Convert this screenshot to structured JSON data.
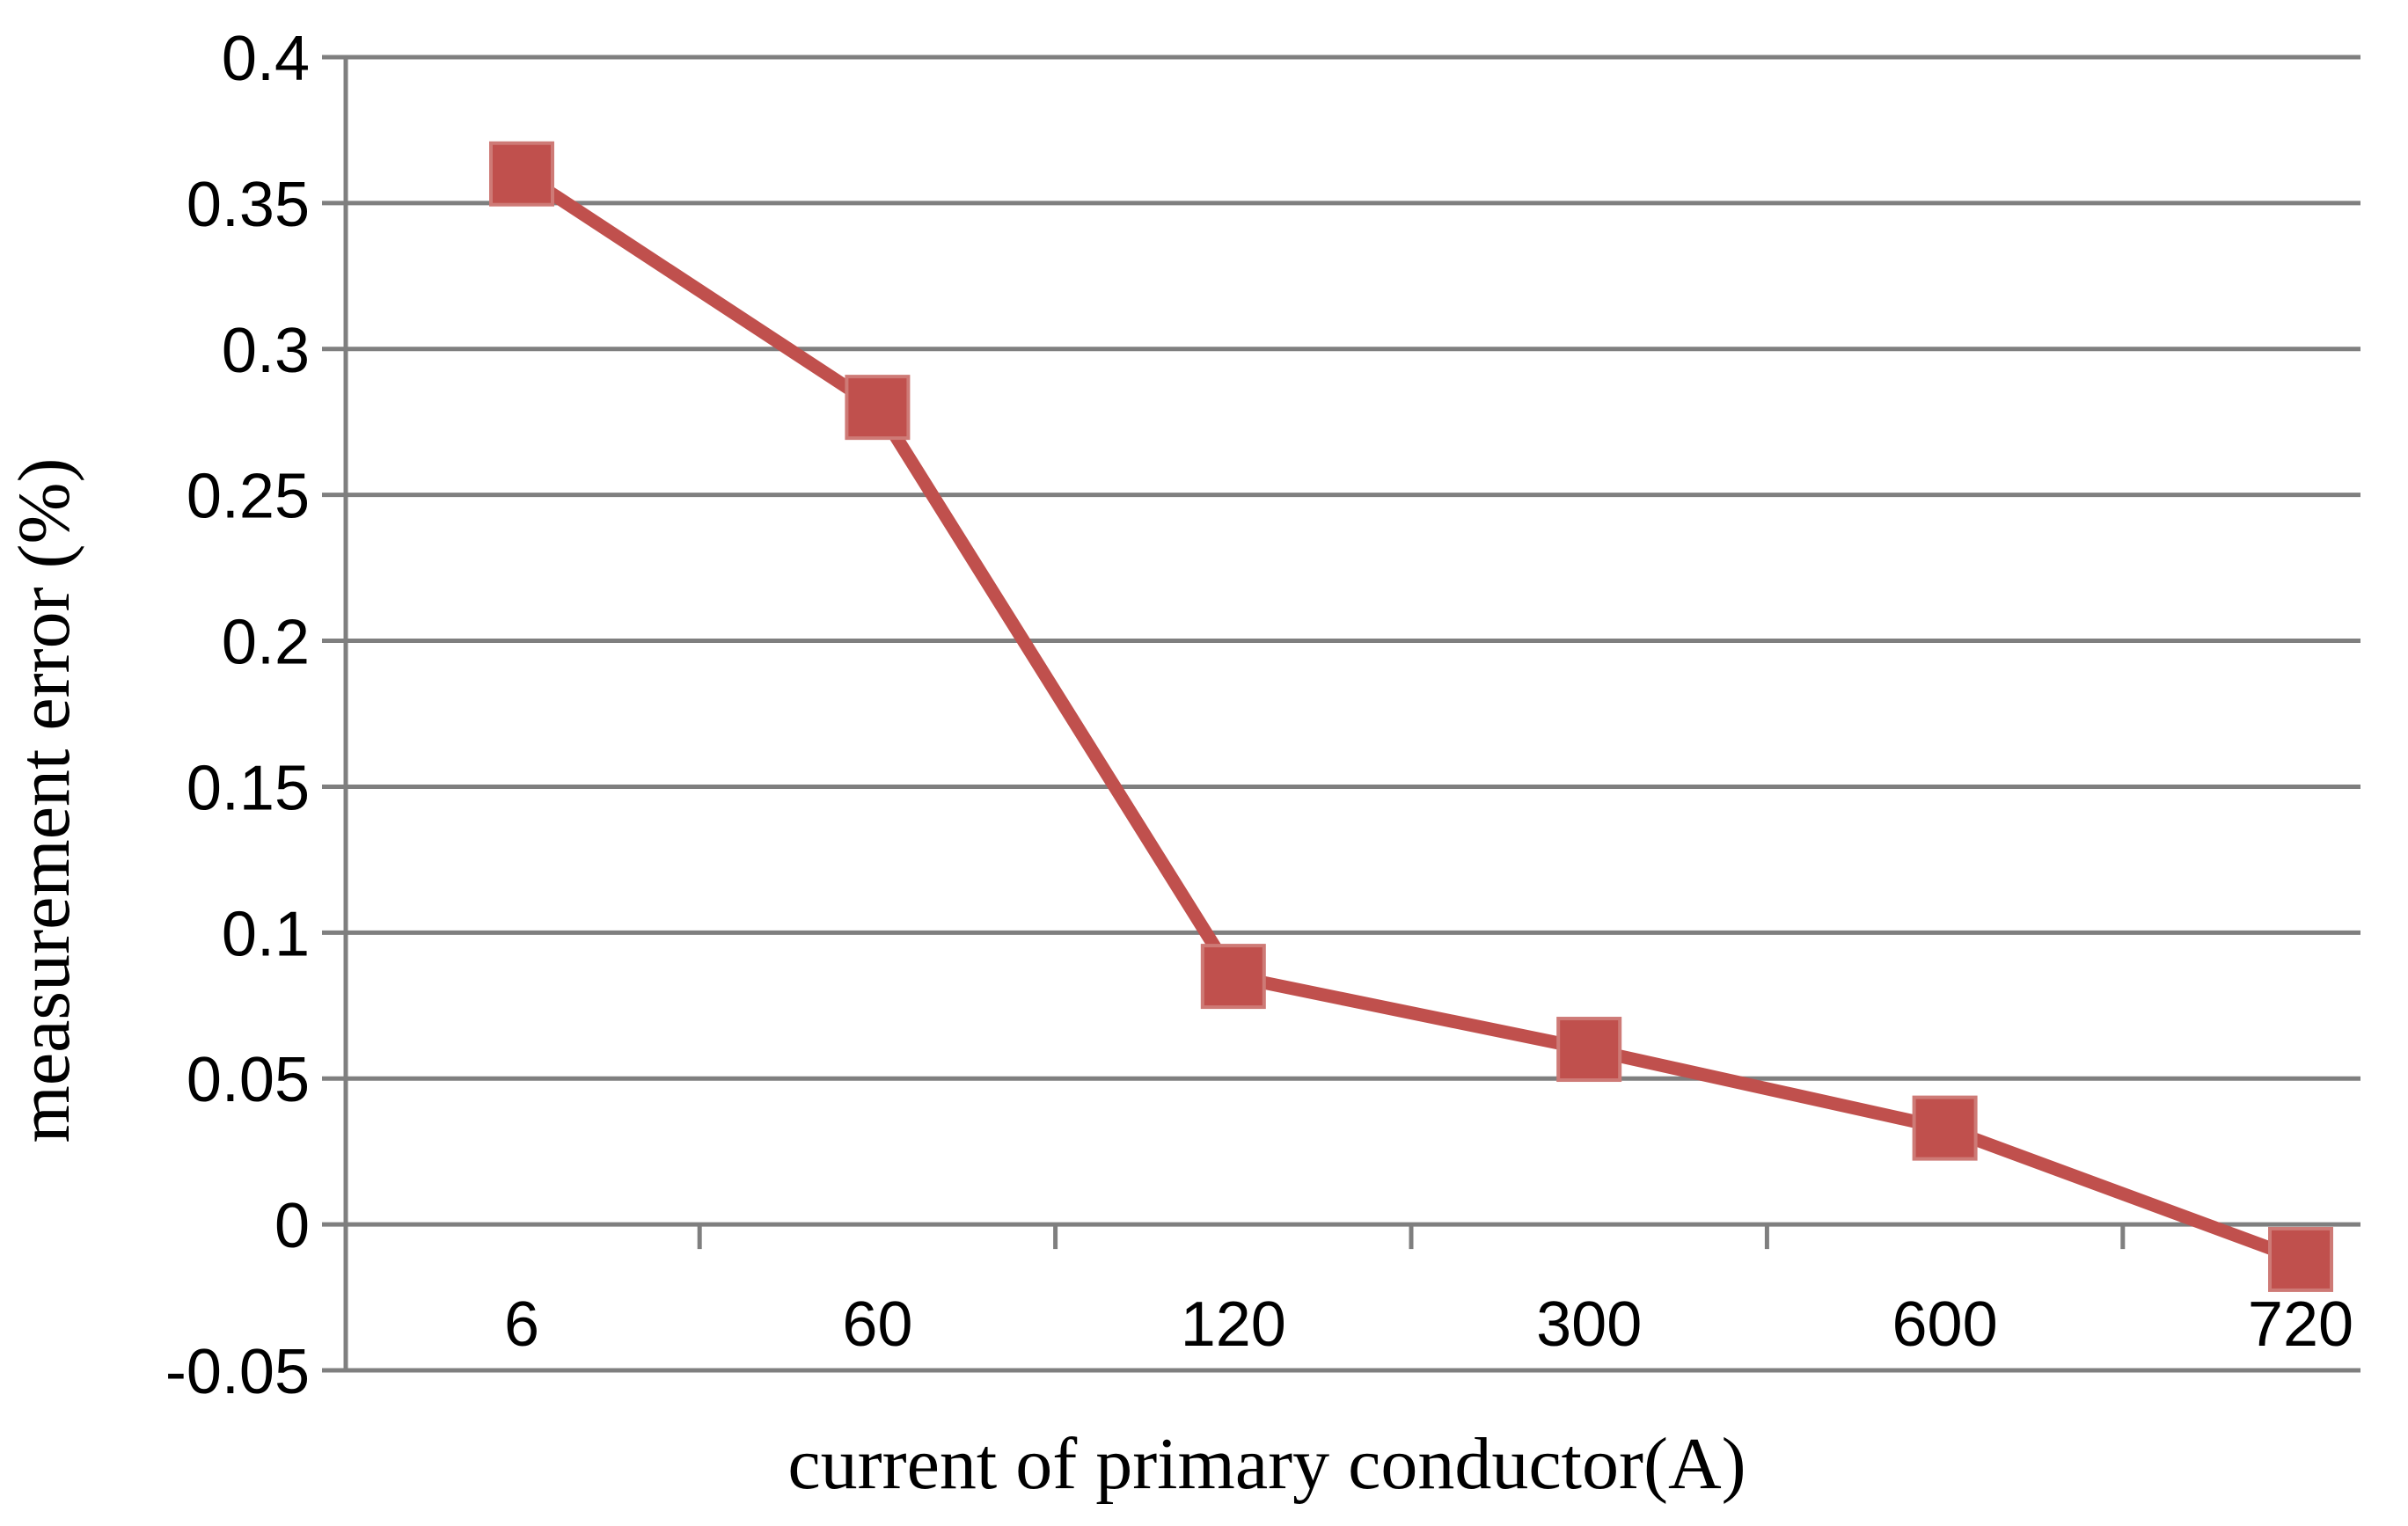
{
  "chart_data": {
    "type": "line",
    "title": "",
    "categories": [
      "6",
      "60",
      "120",
      "300",
      "600",
      "720"
    ],
    "series": [
      {
        "name": "measurement error",
        "values": [
          0.36,
          0.28,
          0.085,
          0.06,
          0.033,
          -0.012
        ],
        "color": "#C0504D",
        "marker": "square"
      }
    ],
    "xlabel": "current of primary conductor(A)",
    "ylabel": "measurement error（%）",
    "ylim": [
      -0.05,
      0.4
    ],
    "ytick_step": 0.05,
    "ytick_labels": [
      "0.4",
      "0.35",
      "0.3",
      "0.25",
      "0.2",
      "0.15",
      "0.1",
      "0.05",
      "0",
      "-0.05"
    ],
    "grid": true,
    "legend": "none",
    "colors": {
      "series": "#C0504D",
      "marker_edge": "#CE7A76",
      "gridline": "#7F7F7F",
      "axis": "#7F7F7F",
      "text": "#000000",
      "background": "#FFFFFF"
    }
  }
}
